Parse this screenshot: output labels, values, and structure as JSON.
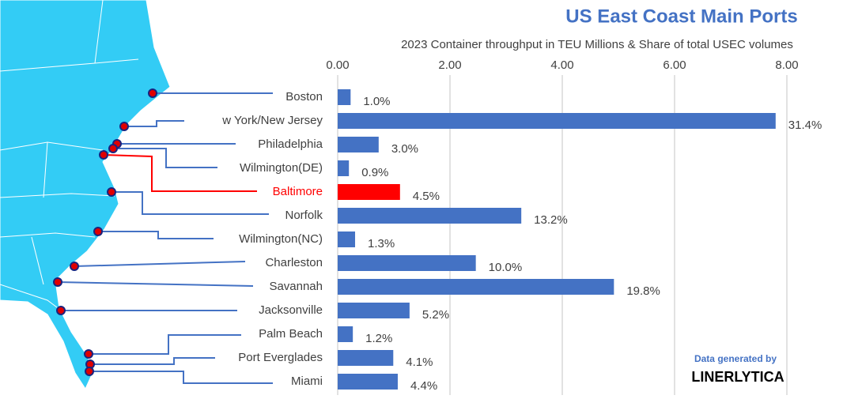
{
  "chart_data": {
    "type": "hbar",
    "title": "US East Coast Main Ports",
    "subtitle": "2023 Container throughput in TEU Millions & Share of total USEC volumes",
    "categories": [
      "Boston",
      "w York/New Jersey",
      "Philadelphia",
      "Wilmington(DE)",
      "Baltimore",
      "Norfolk",
      "Wilmington(NC)",
      "Charleston",
      "Savannah",
      "Jacksonville",
      "Palm Beach",
      "Port Everglades",
      "Miami"
    ],
    "values": [
      0.23,
      7.8,
      0.73,
      0.2,
      1.11,
      3.27,
      0.31,
      2.46,
      4.92,
      1.28,
      0.27,
      0.99,
      1.07
    ],
    "share_labels": [
      "1.0%",
      "31.4%",
      "3.0%",
      "0.9%",
      "4.5%",
      "13.2%",
      "1.3%",
      "10.0%",
      "19.8%",
      "5.2%",
      "1.2%",
      "4.1%",
      "4.4%"
    ],
    "color": "#4472c4",
    "colors": [
      "#4472c4",
      "#4472c4",
      "#4472c4",
      "#4472c4",
      "#ff0000",
      "#4472c4",
      "#4472c4",
      "#4472c4",
      "#4472c4",
      "#4472c4",
      "#4472c4",
      "#4472c4",
      "#4472c4"
    ],
    "xlim": [
      0,
      8.2
    ],
    "xticks": [
      {
        "value": 0,
        "label": "0.00"
      },
      {
        "value": 2,
        "label": "2.00"
      },
      {
        "value": 4,
        "label": "4.00"
      },
      {
        "value": 6,
        "label": "6.00"
      },
      {
        "value": 8,
        "label": "8.00"
      }
    ],
    "grid": true,
    "source_line1": "Data generated by",
    "source_line2": "LINERLYTICA"
  }
}
